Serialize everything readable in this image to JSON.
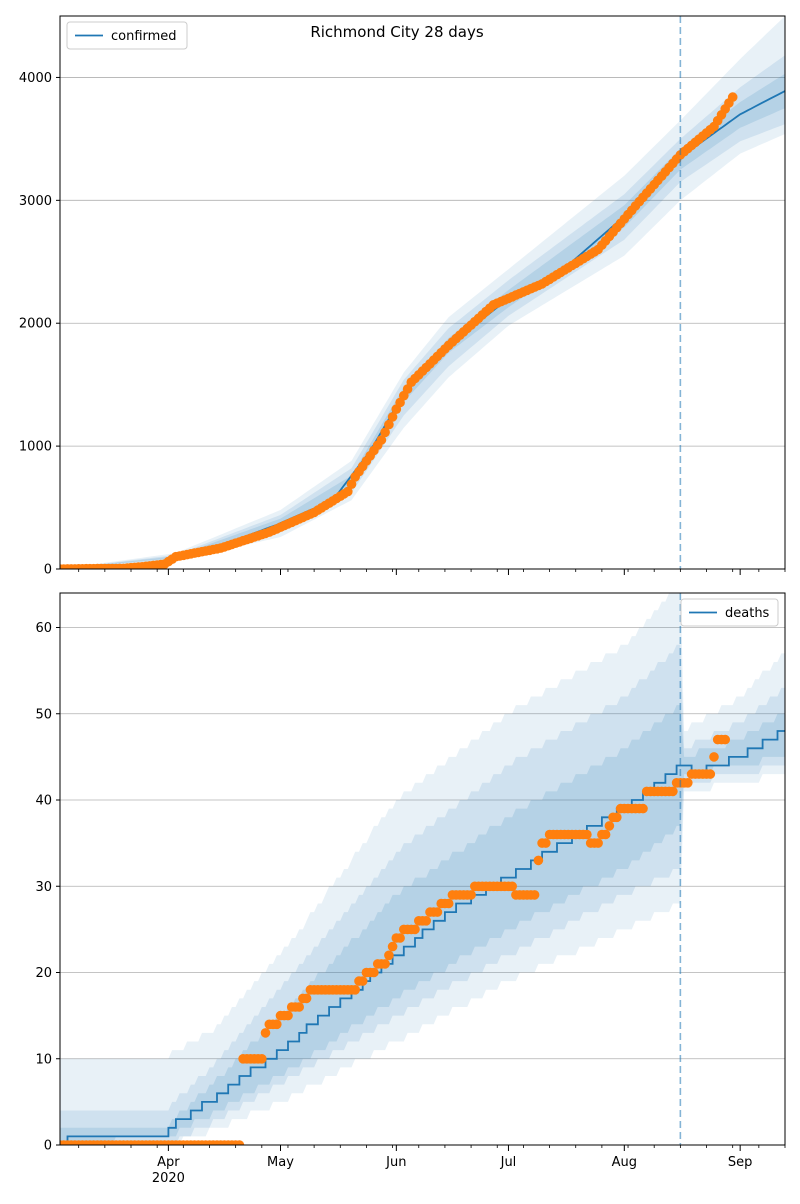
{
  "title": "Richmond City 28 days",
  "colors": {
    "model": "#1f77b4",
    "observed": "#ff7f0e",
    "band": "#1f77b4",
    "grid": "#b0b0b0"
  },
  "chart_data": [
    {
      "type": "line",
      "name": "confirmed-panel",
      "legend": {
        "label": "confirmed",
        "placement": "upper left"
      },
      "x_start": "2020-03-03",
      "x_end": "2020-09-13",
      "xlim": [
        "2020-03-03",
        "2020-09-13"
      ],
      "ylim": [
        0,
        4500
      ],
      "yticks": [
        0,
        1000,
        2000,
        3000,
        4000
      ],
      "grid": "horizontal",
      "forecast_start": "2020-08-16",
      "model_curve": [
        [
          "2020-03-03",
          0
        ],
        [
          "2020-03-31",
          10
        ],
        [
          "2020-04-03",
          100
        ],
        [
          "2020-04-15",
          190
        ],
        [
          "2020-04-30",
          360
        ],
        [
          "2020-05-15",
          560
        ],
        [
          "2020-05-25",
          960
        ],
        [
          "2020-06-03",
          1430
        ],
        [
          "2020-06-15",
          1820
        ],
        [
          "2020-07-01",
          2200
        ],
        [
          "2020-07-15",
          2420
        ],
        [
          "2020-08-01",
          2870
        ],
        [
          "2020-08-16",
          3350
        ],
        [
          "2020-09-01",
          3700
        ],
        [
          "2020-09-13",
          3890
        ]
      ],
      "bands": [
        {
          "upper": [
            [
              "2020-03-03",
              0
            ],
            [
              "2020-04-03",
              130
            ],
            [
              "2020-05-01",
              480
            ],
            [
              "2020-05-20",
              880
            ],
            [
              "2020-06-03",
              1600
            ],
            [
              "2020-06-15",
              2050
            ],
            [
              "2020-07-01",
              2440
            ],
            [
              "2020-08-01",
              3200
            ],
            [
              "2020-08-16",
              3650
            ],
            [
              "2020-09-01",
              4150
            ],
            [
              "2020-09-13",
              4500
            ]
          ],
          "lower": [
            [
              "2020-03-03",
              0
            ],
            [
              "2020-04-03",
              70
            ],
            [
              "2020-05-01",
              260
            ],
            [
              "2020-05-20",
              560
            ],
            [
              "2020-06-03",
              1150
            ],
            [
              "2020-06-15",
              1560
            ],
            [
              "2020-07-01",
              1980
            ],
            [
              "2020-08-01",
              2550
            ],
            [
              "2020-08-16",
              3000
            ],
            [
              "2020-09-01",
              3380
            ],
            [
              "2020-09-13",
              3540
            ]
          ]
        },
        {
          "upper": [
            [
              "2020-03-03",
              0
            ],
            [
              "2020-04-03",
              115
            ],
            [
              "2020-05-01",
              440
            ],
            [
              "2020-05-20",
              820
            ],
            [
              "2020-06-03",
              1540
            ],
            [
              "2020-06-15",
              1960
            ],
            [
              "2020-07-01",
              2350
            ],
            [
              "2020-08-01",
              3050
            ],
            [
              "2020-08-16",
              3500
            ],
            [
              "2020-09-01",
              3920
            ],
            [
              "2020-09-13",
              4180
            ]
          ],
          "lower": [
            [
              "2020-03-03",
              0
            ],
            [
              "2020-04-03",
              80
            ],
            [
              "2020-05-01",
              300
            ],
            [
              "2020-05-20",
              620
            ],
            [
              "2020-06-03",
              1250
            ],
            [
              "2020-06-15",
              1650
            ],
            [
              "2020-07-01",
              2060
            ],
            [
              "2020-08-01",
              2680
            ],
            [
              "2020-08-16",
              3150
            ],
            [
              "2020-09-01",
              3480
            ],
            [
              "2020-09-13",
              3620
            ]
          ]
        },
        {
          "upper": [
            [
              "2020-03-03",
              0
            ],
            [
              "2020-04-03",
              105
            ],
            [
              "2020-05-01",
              410
            ],
            [
              "2020-05-20",
              760
            ],
            [
              "2020-06-03",
              1480
            ],
            [
              "2020-06-15",
              1880
            ],
            [
              "2020-07-01",
              2270
            ],
            [
              "2020-08-01",
              2960
            ],
            [
              "2020-08-16",
              3420
            ],
            [
              "2020-09-01",
              3800
            ],
            [
              "2020-09-13",
              4030
            ]
          ],
          "lower": [
            [
              "2020-03-03",
              0
            ],
            [
              "2020-04-03",
              90
            ],
            [
              "2020-05-01",
              340
            ],
            [
              "2020-05-20",
              680
            ],
            [
              "2020-06-03",
              1360
            ],
            [
              "2020-06-15",
              1760
            ],
            [
              "2020-07-01",
              2130
            ],
            [
              "2020-08-01",
              2780
            ],
            [
              "2020-08-16",
              3250
            ],
            [
              "2020-09-01",
              3590
            ],
            [
              "2020-09-13",
              3750
            ]
          ]
        }
      ],
      "observed_anchors": [
        [
          "2020-03-03",
          0
        ],
        [
          "2020-03-20",
          5
        ],
        [
          "2020-03-25",
          18
        ],
        [
          "2020-03-31",
          40
        ],
        [
          "2020-04-03",
          100
        ],
        [
          "2020-04-15",
          170
        ],
        [
          "2020-04-28",
          300
        ],
        [
          "2020-05-10",
          460
        ],
        [
          "2020-05-19",
          630
        ],
        [
          "2020-05-21",
          750
        ],
        [
          "2020-05-28",
          1050
        ],
        [
          "2020-06-01",
          1300
        ],
        [
          "2020-06-05",
          1520
        ],
        [
          "2020-06-15",
          1820
        ],
        [
          "2020-06-27",
          2150
        ],
        [
          "2020-07-10",
          2320
        ],
        [
          "2020-07-25",
          2600
        ],
        [
          "2020-08-05",
          2990
        ],
        [
          "2020-08-16",
          3370
        ],
        [
          "2020-08-25",
          3600
        ],
        [
          "2020-08-30",
          3840
        ]
      ]
    },
    {
      "type": "line",
      "name": "deaths-panel",
      "legend": {
        "label": "deaths",
        "placement": "upper right"
      },
      "x_start": "2020-03-03",
      "x_end": "2020-09-13",
      "xlim": [
        "2020-03-03",
        "2020-09-13"
      ],
      "ylim": [
        0,
        64
      ],
      "yticks": [
        0,
        10,
        20,
        30,
        40,
        50,
        60
      ],
      "xticks": [
        {
          "date": "2020-04-01",
          "label": "Apr",
          "sub": "2020"
        },
        {
          "date": "2020-05-01",
          "label": "May",
          "sub": ""
        },
        {
          "date": "2020-06-01",
          "label": "Jun",
          "sub": ""
        },
        {
          "date": "2020-07-01",
          "label": "Jul",
          "sub": ""
        },
        {
          "date": "2020-08-01",
          "label": "Aug",
          "sub": ""
        },
        {
          "date": "2020-09-01",
          "label": "Sep",
          "sub": ""
        }
      ],
      "grid": "horizontal",
      "forecast_start": "2020-08-16",
      "model_curve": [
        [
          "2020-03-03",
          0
        ],
        [
          "2020-03-06",
          1
        ],
        [
          "2020-03-31",
          1
        ],
        [
          "2020-04-01",
          2
        ],
        [
          "2020-04-15",
          6
        ],
        [
          "2020-05-01",
          11
        ],
        [
          "2020-05-15",
          16
        ],
        [
          "2020-06-01",
          22
        ],
        [
          "2020-06-15",
          27
        ],
        [
          "2020-07-01",
          31
        ],
        [
          "2020-07-15",
          35
        ],
        [
          "2020-08-01",
          39
        ],
        [
          "2020-08-16",
          44
        ],
        [
          "2020-08-20",
          43
        ],
        [
          "2020-09-01",
          45
        ],
        [
          "2020-09-13",
          48
        ]
      ],
      "bands": [
        {
          "upper": [
            [
              "2020-03-03",
              10
            ],
            [
              "2020-03-31",
              10
            ],
            [
              "2020-04-15",
              14
            ],
            [
              "2020-05-01",
              22
            ],
            [
              "2020-06-01",
              40
            ],
            [
              "2020-07-01",
              50
            ],
            [
              "2020-08-01",
              58
            ],
            [
              "2020-08-16",
              65
            ],
            [
              "2020-08-17",
              48
            ],
            [
              "2020-09-01",
              52
            ],
            [
              "2020-09-13",
              57
            ]
          ],
          "lower": [
            [
              "2020-03-03",
              0
            ],
            [
              "2020-04-01",
              0
            ],
            [
              "2020-04-15",
              2
            ],
            [
              "2020-05-01",
              5
            ],
            [
              "2020-06-01",
              12
            ],
            [
              "2020-07-01",
              19
            ],
            [
              "2020-08-01",
              25
            ],
            [
              "2020-08-16",
              28
            ],
            [
              "2020-08-17",
              41
            ],
            [
              "2020-09-01",
              42
            ],
            [
              "2020-09-13",
              43
            ]
          ]
        },
        {
          "upper": [
            [
              "2020-03-03",
              4
            ],
            [
              "2020-03-31",
              4
            ],
            [
              "2020-04-15",
              10
            ],
            [
              "2020-05-01",
              18
            ],
            [
              "2020-06-01",
              34
            ],
            [
              "2020-07-01",
              44
            ],
            [
              "2020-08-01",
              52
            ],
            [
              "2020-08-16",
              58
            ],
            [
              "2020-08-17",
              46
            ],
            [
              "2020-09-01",
              49
            ],
            [
              "2020-09-13",
              53
            ]
          ],
          "lower": [
            [
              "2020-03-03",
              0
            ],
            [
              "2020-04-01",
              0
            ],
            [
              "2020-04-15",
              3
            ],
            [
              "2020-05-01",
              7
            ],
            [
              "2020-06-01",
              15
            ],
            [
              "2020-07-01",
              22
            ],
            [
              "2020-08-01",
              29
            ],
            [
              "2020-08-16",
              32
            ],
            [
              "2020-08-17",
              42
            ],
            [
              "2020-09-01",
              43
            ],
            [
              "2020-09-13",
              44
            ]
          ]
        },
        {
          "upper": [
            [
              "2020-03-03",
              2
            ],
            [
              "2020-03-31",
              2
            ],
            [
              "2020-04-15",
              8
            ],
            [
              "2020-05-01",
              15
            ],
            [
              "2020-06-01",
              29
            ],
            [
              "2020-07-01",
              38
            ],
            [
              "2020-08-01",
              46
            ],
            [
              "2020-08-16",
              51
            ],
            [
              "2020-08-17",
              45
            ],
            [
              "2020-09-01",
              47
            ],
            [
              "2020-09-13",
              50
            ]
          ],
          "lower": [
            [
              "2020-03-03",
              0
            ],
            [
              "2020-04-01",
              1
            ],
            [
              "2020-04-15",
              4
            ],
            [
              "2020-05-01",
              8
            ],
            [
              "2020-06-01",
              17
            ],
            [
              "2020-07-01",
              25
            ],
            [
              "2020-08-01",
              32
            ],
            [
              "2020-08-16",
              37
            ],
            [
              "2020-08-17",
              43
            ],
            [
              "2020-09-01",
              44
            ],
            [
              "2020-09-13",
              45
            ]
          ]
        }
      ],
      "observed_anchors": [
        [
          "2020-03-03",
          0
        ],
        [
          "2020-04-20",
          0
        ],
        [
          "2020-04-21",
          10
        ],
        [
          "2020-04-26",
          10
        ],
        [
          "2020-04-27",
          13
        ],
        [
          "2020-04-28",
          14
        ],
        [
          "2020-05-03",
          15
        ],
        [
          "2020-05-05",
          16
        ],
        [
          "2020-05-08",
          17
        ],
        [
          "2020-05-10",
          18
        ],
        [
          "2020-05-20",
          18
        ],
        [
          "2020-05-25",
          20
        ],
        [
          "2020-05-29",
          21
        ],
        [
          "2020-06-01",
          24
        ],
        [
          "2020-06-08",
          26
        ],
        [
          "2020-06-14",
          28
        ],
        [
          "2020-06-17",
          29
        ],
        [
          "2020-06-26",
          30
        ],
        [
          "2020-07-01",
          30
        ],
        [
          "2020-07-03",
          29
        ],
        [
          "2020-07-08",
          29
        ],
        [
          "2020-07-09",
          33
        ],
        [
          "2020-07-10",
          35
        ],
        [
          "2020-07-14",
          36
        ],
        [
          "2020-07-20",
          36
        ],
        [
          "2020-07-25",
          35
        ],
        [
          "2020-07-28",
          37
        ],
        [
          "2020-08-01",
          39
        ],
        [
          "2020-08-06",
          39
        ],
        [
          "2020-08-07",
          41
        ],
        [
          "2020-08-14",
          41
        ],
        [
          "2020-08-15",
          42
        ],
        [
          "2020-08-18",
          42
        ],
        [
          "2020-08-19",
          43
        ],
        [
          "2020-08-24",
          43
        ],
        [
          "2020-08-25",
          45
        ],
        [
          "2020-08-26",
          47
        ],
        [
          "2020-08-28",
          47
        ]
      ]
    }
  ]
}
